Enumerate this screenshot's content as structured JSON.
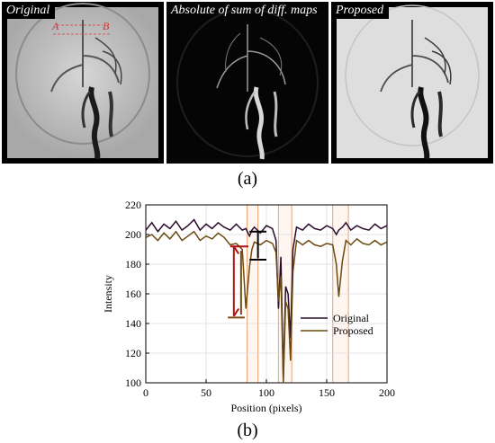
{
  "panels": [
    {
      "title": "Original",
      "annotation_a": "A",
      "annotation_b": "B"
    },
    {
      "title": "Absolute of sum of diff. maps"
    },
    {
      "title": "Proposed"
    }
  ],
  "caption_a": "(a)",
  "caption_b": "(b)",
  "colors": {
    "original": "#2a0a2a",
    "proposed": "#6b4a10",
    "highlight": "#f0a070",
    "arrow_red": "#b01010",
    "arrow_brown": "#7a4a10"
  },
  "chart_data": {
    "type": "line",
    "xlabel": "Position (pixels)",
    "ylabel": "Intensity",
    "xlim": [
      0,
      200
    ],
    "ylim": [
      100,
      220
    ],
    "xticks": [
      0,
      50,
      100,
      150,
      200
    ],
    "yticks": [
      100,
      120,
      140,
      160,
      180,
      200,
      220
    ],
    "legend": "right",
    "grid": true,
    "x": [
      0,
      5,
      10,
      15,
      20,
      25,
      30,
      35,
      40,
      45,
      50,
      55,
      60,
      65,
      70,
      75,
      80,
      83,
      86,
      88,
      90,
      95,
      100,
      105,
      108,
      110,
      112,
      114,
      116,
      118,
      120,
      122,
      125,
      130,
      135,
      140,
      145,
      150,
      155,
      158,
      160,
      163,
      166,
      170,
      175,
      180,
      185,
      190,
      195,
      200
    ],
    "series": [
      {
        "name": "Original",
        "values": [
          203,
          208,
          202,
          207,
          204,
          209,
          203,
          206,
          210,
          203,
          207,
          204,
          208,
          205,
          203,
          207,
          203,
          204,
          199,
          203,
          205,
          201,
          206,
          204,
          196,
          150,
          185,
          104,
          165,
          160,
          130,
          190,
          205,
          203,
          207,
          204,
          203,
          206,
          204,
          200,
          203,
          205,
          208,
          203,
          206,
          204,
          203,
          207,
          204,
          206
        ]
      },
      {
        "name": "Proposed",
        "values": [
          198,
          200,
          196,
          201,
          197,
          202,
          196,
          199,
          202,
          196,
          199,
          197,
          201,
          198,
          193,
          194,
          190,
          150,
          178,
          190,
          195,
          193,
          196,
          194,
          188,
          155,
          172,
          100,
          155,
          150,
          115,
          175,
          196,
          193,
          196,
          193,
          192,
          194,
          193,
          180,
          158,
          182,
          196,
          193,
          197,
          194,
          193,
          196,
          193,
          195
        ]
      }
    ],
    "highlight_ranges": [
      [
        84,
        93
      ],
      [
        110,
        121
      ],
      [
        155,
        168
      ]
    ]
  }
}
